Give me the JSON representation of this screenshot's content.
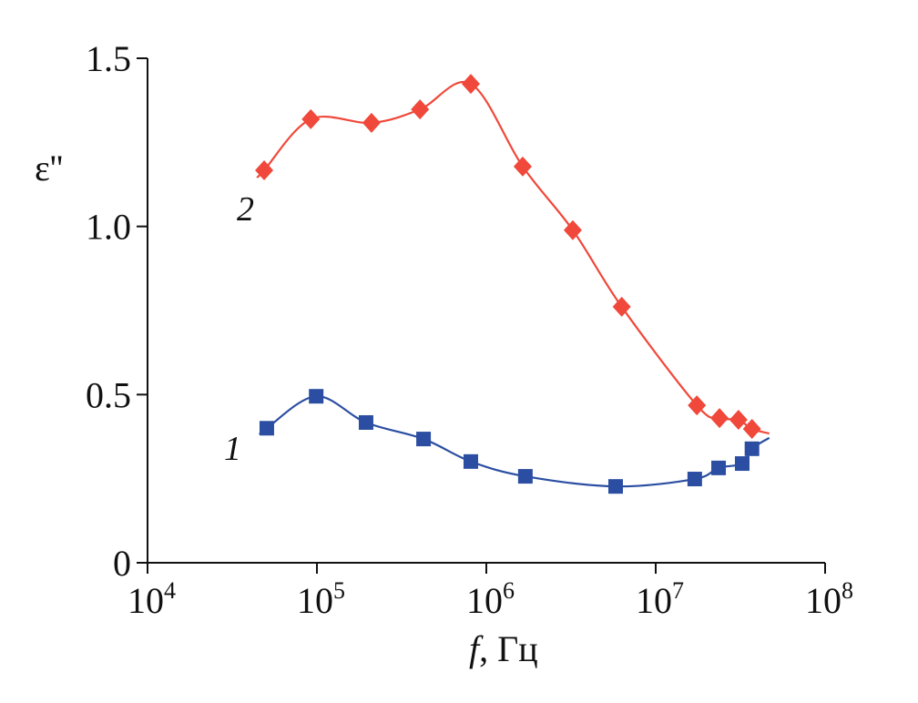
{
  "chart_data": {
    "type": "line",
    "title": "",
    "xlabel_var": "f",
    "xlabel_unit": ", Гц",
    "ylabel": "ε''",
    "xscale": "log",
    "xlim": [
      10000,
      100000000
    ],
    "ylim": [
      0,
      1.5
    ],
    "x_tick_labels": [
      {
        "base": "10",
        "exp": "4",
        "value": 10000
      },
      {
        "base": "10",
        "exp": "5",
        "value": 100000
      },
      {
        "base": "10",
        "exp": "6",
        "value": 1000000
      },
      {
        "base": "10",
        "exp": "7",
        "value": 10000000
      },
      {
        "base": "10",
        "exp": "8",
        "value": 100000000
      }
    ],
    "y_tick_labels": [
      {
        "label": "0",
        "value": 0
      },
      {
        "label": "0.5",
        "value": 0.5
      },
      {
        "label": "1.0",
        "value": 1.0
      },
      {
        "label": "1.5",
        "value": 1.5
      }
    ],
    "grid": false,
    "series": [
      {
        "name": "1",
        "color": "#2b4ea2",
        "marker": "square",
        "x": [
          50600,
          99000,
          195000,
          426000,
          810000,
          1700000,
          5800000,
          17000000,
          23500000,
          32400000,
          37000000
        ],
        "y": [
          0.4,
          0.495,
          0.417,
          0.368,
          0.301,
          0.257,
          0.227,
          0.249,
          0.282,
          0.295,
          0.339
        ]
      },
      {
        "name": "2",
        "color": "#f0483a",
        "marker": "diamond",
        "x": [
          48800,
          92000,
          210000,
          406000,
          810000,
          1640000,
          3240000,
          6300000,
          17500000,
          23800000,
          30800000,
          37000000
        ],
        "y": [
          1.167,
          1.319,
          1.308,
          1.348,
          1.424,
          1.178,
          0.989,
          0.761,
          0.468,
          0.43,
          0.425,
          0.398
        ]
      }
    ]
  }
}
